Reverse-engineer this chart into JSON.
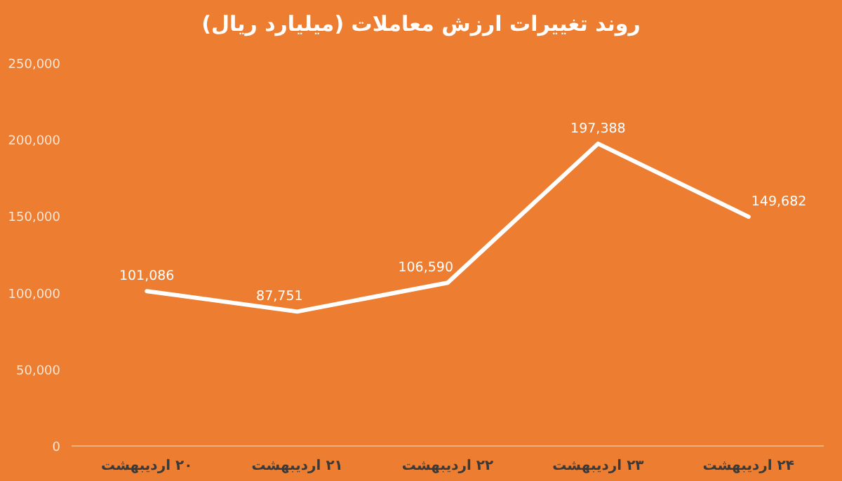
{
  "chart_data": {
    "type": "line",
    "title": "روند تغییرات ارزش معاملات (میلیارد ریال)",
    "categories": [
      "۲۰ اردیبهشت",
      "۲۱ اردیبهشت",
      "۲۲ اردیبهشت",
      "۲۳ اردیبهشت",
      "۲۴ اردیبهشت"
    ],
    "values": [
      101086,
      87751,
      106590,
      197388,
      149682
    ],
    "value_labels": [
      "101,086",
      "87,751",
      "106,590",
      "197,388",
      "149,682"
    ],
    "color": "#ffffff",
    "ylim": [
      0,
      250000
    ],
    "yticks": [
      0,
      {
        "value": 50000,
        "label": "50,000"
      },
      {
        "value": 100000,
        "label": "100,000"
      },
      {
        "value": 150000,
        "label": "150,000"
      },
      {
        "value": 200000,
        "label": "200,000"
      },
      {
        "value": 250000,
        "label": "250,000"
      }
    ],
    "grid": false,
    "legend": false,
    "marker": "none",
    "line_style": "solid"
  }
}
